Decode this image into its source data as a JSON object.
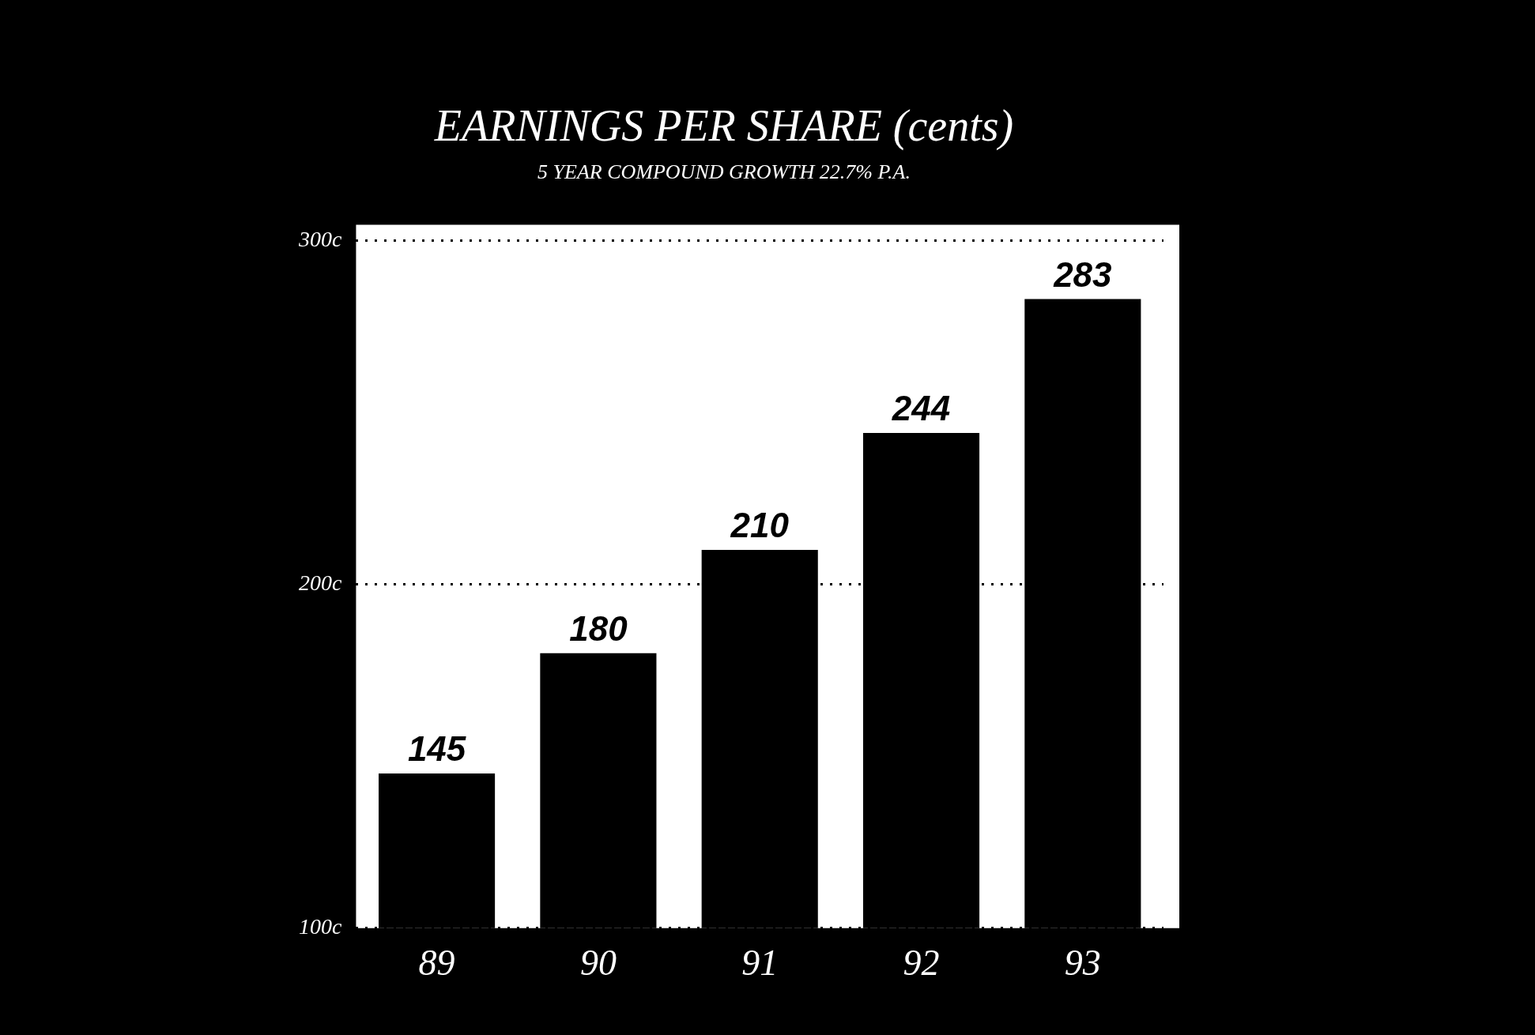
{
  "chart_data": {
    "type": "bar",
    "title": "EARNINGS PER SHARE (cents)",
    "subtitle": "5 YEAR COMPOUND GROWTH 22.7% P.A.",
    "categories": [
      "89",
      "90",
      "91",
      "92",
      "93"
    ],
    "values": [
      145,
      180,
      210,
      244,
      283
    ],
    "color": "#000000",
    "ylim": [
      100,
      300
    ],
    "yticks": [
      {
        "value": 100,
        "label": "100c"
      },
      {
        "value": 200,
        "label": "200c"
      },
      {
        "value": 300,
        "label": "300c"
      }
    ],
    "grid": "y",
    "line_style": "dotted",
    "data_labels": true
  }
}
